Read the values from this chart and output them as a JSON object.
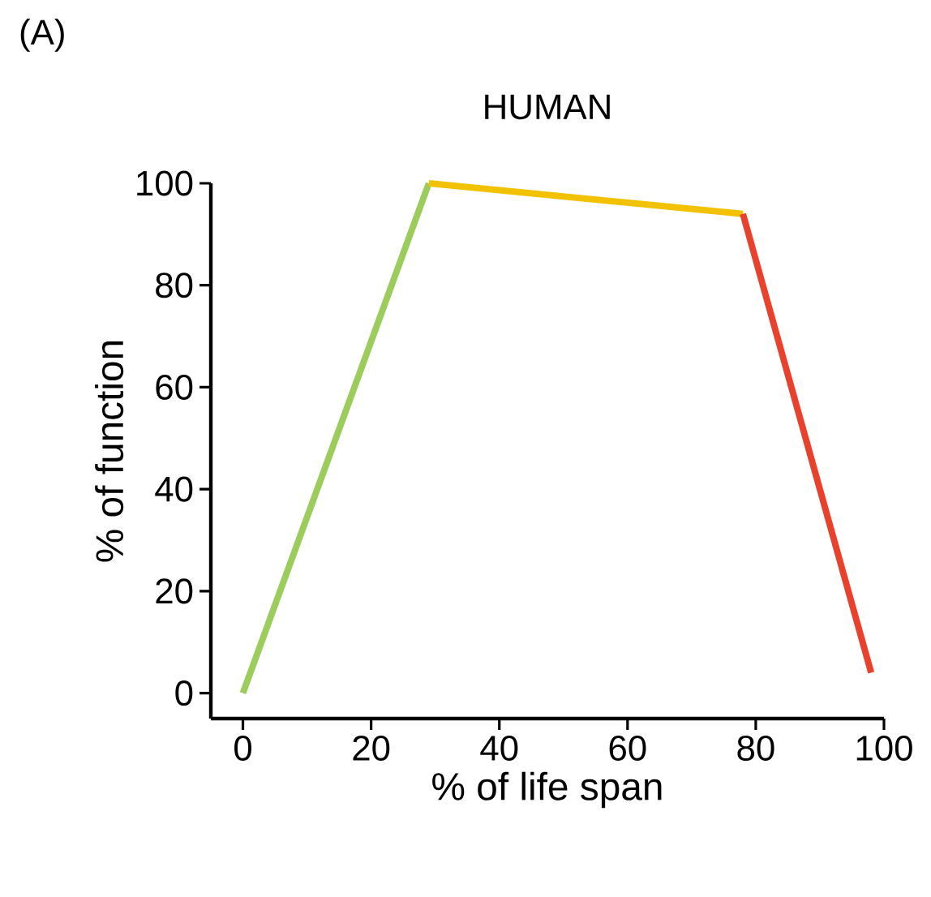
{
  "chart_data": {
    "type": "line",
    "title": "HUMAN",
    "xlabel": "% of life span",
    "ylabel": "% of function",
    "annotations": [
      "(A)"
    ],
    "series": [
      {
        "color": "#9ccc5c",
        "x": [
          0,
          29
        ],
        "values": [
          0,
          100
        ]
      },
      {
        "color": "#f2c200",
        "x": [
          29,
          78
        ],
        "values": [
          100,
          94
        ]
      },
      {
        "color": "#e8412c",
        "x": [
          78,
          98
        ],
        "values": [
          94,
          4
        ]
      }
    ],
    "xlim": [
      -5,
      100
    ],
    "ylim": [
      -5,
      100
    ],
    "xticks": [
      0,
      20,
      40,
      60,
      80,
      100
    ],
    "yticks": [
      0,
      20,
      40,
      60,
      80,
      100
    ],
    "grid": false,
    "marker": "none",
    "line_style": "solid"
  }
}
